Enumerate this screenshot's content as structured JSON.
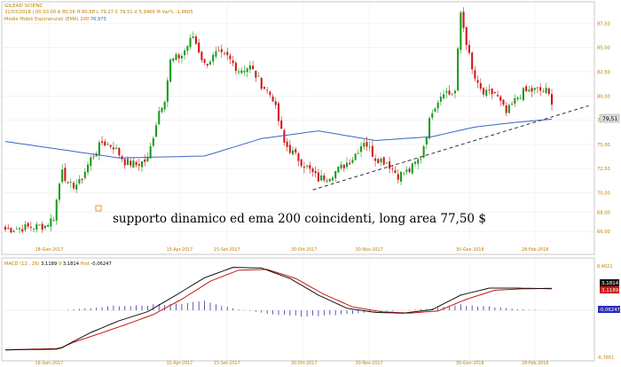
{
  "header": {
    "symbol": "GILEAD SCIENC",
    "date": "31/03/2018",
    "time": "00.00.00",
    "open_label": "A",
    "open": "80,56",
    "high_label": "H",
    "high": "80,88",
    "low_label": "L",
    "low": "79,27",
    "close_label": "C",
    "close": "79,51",
    "volume_label": "V",
    "volume": "5,9466 M",
    "change_label": "Var%",
    "change": "-1,9605",
    "ema_label": "Medie Mobili Esponenziali (EMA)",
    "ema_period": "200",
    "ema_value": "76,975"
  },
  "annotation": "supporto dinamico ed ema 200 coincidenti, long area 77,50 $",
  "macd_header": {
    "label": "MACD",
    "params": "(12 , 26)",
    "macd_value": "3,1189",
    "signal_label": "9",
    "signal_value": "3,1814",
    "hist_label": "Hist",
    "hist_value": "-0,06247"
  },
  "macd_badges": {
    "signal": "3,1814",
    "macd": "3,1189",
    "hist": "-0,06247"
  },
  "price_badge": "79,51",
  "colors": {
    "up": "#1a9b1a",
    "down": "#d01818",
    "ema": "#3a66c4",
    "macd": "#111111",
    "signal": "#cc1414",
    "hist": "#3030aa",
    "header_text": "#c08000",
    "axis_text": "#c08000"
  },
  "chart_data": [
    {
      "type": "candlestick",
      "title": "GILEAD SCIENC",
      "x_labels": [
        "18-Gen-2017",
        "15-Apr-2017",
        "15-Set-2017",
        "30-Ott-2017",
        "30-Nov-2017",
        "30-Gen-2018",
        "28-Feb-2018"
      ],
      "y_ticks": [
        66.0,
        68.0,
        70.0,
        72.5,
        75.0,
        77.5,
        80.0,
        82.5,
        85.0,
        87.5
      ],
      "ylim": [
        64.0,
        89.0
      ],
      "price_segments": [
        [
          0,
          66.2
        ],
        [
          14,
          66.6
        ],
        [
          17,
          67.5
        ],
        [
          20,
          72.7
        ],
        [
          22,
          70.6
        ],
        [
          26,
          71.0
        ],
        [
          30,
          73.5
        ],
        [
          34,
          75.2
        ],
        [
          38,
          74.8
        ],
        [
          42,
          73.2
        ],
        [
          46,
          72.9
        ],
        [
          50,
          73.4
        ],
        [
          54,
          78.5
        ],
        [
          56,
          79.8
        ],
        [
          58,
          83.6
        ],
        [
          62,
          84.2
        ],
        [
          66,
          86.2
        ],
        [
          70,
          83.2
        ],
        [
          74,
          84.3
        ],
        [
          78,
          84.0
        ],
        [
          82,
          82.7
        ],
        [
          86,
          83.0
        ],
        [
          90,
          81.2
        ],
        [
          94,
          79.8
        ],
        [
          98,
          75.1
        ],
        [
          102,
          73.8
        ],
        [
          106,
          72.6
        ],
        [
          110,
          71.4
        ],
        [
          114,
          71.8
        ],
        [
          118,
          72.6
        ],
        [
          122,
          73.6
        ],
        [
          126,
          75.4
        ],
        [
          130,
          73.6
        ],
        [
          134,
          73.2
        ],
        [
          138,
          71.8
        ],
        [
          142,
          72.3
        ],
        [
          146,
          73.7
        ],
        [
          150,
          78.6
        ],
        [
          154,
          80.6
        ],
        [
          156,
          80.2
        ],
        [
          158,
          80.5
        ],
        [
          160,
          88.6
        ],
        [
          164,
          82.6
        ],
        [
          166,
          81.0
        ],
        [
          168,
          80.2
        ],
        [
          172,
          80.3
        ],
        [
          176,
          78.2
        ],
        [
          180,
          79.9
        ],
        [
          182,
          80.4
        ],
        [
          186,
          80.6
        ],
        [
          190,
          80.5
        ],
        [
          192,
          79.5
        ]
      ],
      "ema_200": [
        [
          0,
          75.3
        ],
        [
          40,
          73.6
        ],
        [
          70,
          73.8
        ],
        [
          90,
          75.6
        ],
        [
          110,
          76.4
        ],
        [
          130,
          75.4
        ],
        [
          150,
          75.8
        ],
        [
          165,
          76.8
        ],
        [
          180,
          77.3
        ],
        [
          192,
          77.6
        ]
      ],
      "support_line": [
        [
          108,
          70.3
        ],
        [
          205,
          79.0
        ]
      ],
      "last_close": 79.51
    },
    {
      "type": "macd",
      "title": "MACD",
      "x_labels": [
        "18-Gen-2017",
        "15-Apr-2017",
        "15-Set-2017",
        "30-Ott-2017",
        "30-Nov-2017",
        "30-Gen-2018",
        "28-Feb-2018"
      ],
      "y_ticks": [
        "6,4021",
        "-6,7651"
      ],
      "ylim": [
        -6.7651,
        6.4021
      ],
      "macd_line": [
        [
          0,
          -5.7
        ],
        [
          19,
          -5.6
        ],
        [
          22,
          -4.9
        ],
        [
          30,
          -3.2
        ],
        [
          40,
          -1.5
        ],
        [
          50,
          -0.2
        ],
        [
          60,
          2.2
        ],
        [
          70,
          4.7
        ],
        [
          80,
          6.2
        ],
        [
          90,
          6.1
        ],
        [
          100,
          4.6
        ],
        [
          110,
          2.2
        ],
        [
          120,
          0.3
        ],
        [
          130,
          -0.3
        ],
        [
          140,
          -0.4
        ],
        [
          150,
          0.1
        ],
        [
          160,
          2.2
        ],
        [
          170,
          3.2
        ],
        [
          180,
          3.2
        ],
        [
          192,
          3.12
        ]
      ],
      "signal_line": [
        [
          0,
          -5.7
        ],
        [
          19,
          -5.5
        ],
        [
          24,
          -4.6
        ],
        [
          32,
          -3.5
        ],
        [
          42,
          -2.1
        ],
        [
          52,
          -0.6
        ],
        [
          62,
          1.6
        ],
        [
          72,
          4.2
        ],
        [
          82,
          5.8
        ],
        [
          92,
          5.9
        ],
        [
          102,
          4.6
        ],
        [
          112,
          2.3
        ],
        [
          122,
          0.5
        ],
        [
          132,
          -0.2
        ],
        [
          142,
          -0.4
        ],
        [
          152,
          -0.1
        ],
        [
          162,
          1.6
        ],
        [
          172,
          2.9
        ],
        [
          182,
          3.1
        ],
        [
          192,
          3.18
        ]
      ],
      "histogram_amplitude": [
        [
          0,
          0.0
        ],
        [
          20,
          0.0
        ],
        [
          40,
          0.8
        ],
        [
          60,
          1.0
        ],
        [
          70,
          1.6
        ],
        [
          80,
          0.3
        ],
        [
          90,
          -0.4
        ],
        [
          100,
          -1.0
        ],
        [
          110,
          -1.0
        ],
        [
          125,
          -0.4
        ],
        [
          140,
          0.0
        ],
        [
          150,
          0.3
        ],
        [
          160,
          0.9
        ],
        [
          170,
          0.6
        ],
        [
          180,
          0.2
        ],
        [
          192,
          -0.06
        ]
      ],
      "last_macd": 3.1189,
      "last_signal": 3.1814,
      "last_hist": -0.06247
    }
  ]
}
